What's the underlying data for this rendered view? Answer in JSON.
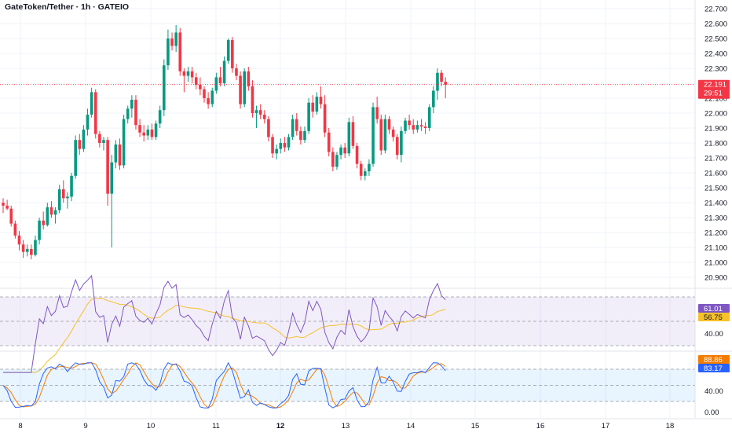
{
  "header": {
    "title": "GateToken/Tether · 1h · GATEIO"
  },
  "price_axis": {
    "labels": [
      "22.700",
      "22.600",
      "22.500",
      "22.400",
      "22.300",
      "22.200",
      "22.100",
      "22.000",
      "21.900",
      "21.800",
      "21.700",
      "21.600",
      "21.500",
      "21.400",
      "21.300",
      "21.200",
      "21.100",
      "21.000",
      "20.900"
    ]
  },
  "last_price": {
    "value": "22.191",
    "countdown": "29:51",
    "color": "#f23645"
  },
  "time_axis": {
    "labels": [
      "8",
      "9",
      "10",
      "11",
      "12",
      "13",
      "14",
      "15",
      "16",
      "17",
      "18"
    ],
    "bold_label": "12"
  },
  "rsi": {
    "value_label": "61.01",
    "ma_label": "56.75",
    "axis_label": "40.00",
    "line_color": "#7e57c2",
    "ma_color": "#f7c12a"
  },
  "stoch": {
    "k_label": "88.86",
    "d_label": "83.17",
    "axis_label_mid": "40.00",
    "axis_label_low": "0.00",
    "k_color": "#2962ff",
    "d_color": "#f57c00"
  },
  "colors": {
    "up": "#089981",
    "down": "#f23645"
  },
  "chart_data": {
    "type": "candlestick",
    "x_unit": "days",
    "ylim": [
      20.85,
      22.75
    ],
    "candles": [
      [
        21.4,
        21.43,
        21.33,
        21.38
      ],
      [
        21.38,
        21.42,
        21.35,
        21.36
      ],
      [
        21.36,
        21.38,
        21.24,
        21.26
      ],
      [
        21.26,
        21.28,
        21.16,
        21.18
      ],
      [
        21.18,
        21.21,
        21.08,
        21.12
      ],
      [
        21.12,
        21.15,
        21.03,
        21.07
      ],
      [
        21.07,
        21.12,
        21.04,
        21.09
      ],
      [
        21.09,
        21.12,
        21.02,
        21.05
      ],
      [
        21.05,
        21.18,
        21.04,
        21.15
      ],
      [
        21.15,
        21.3,
        21.12,
        21.28
      ],
      [
        21.28,
        21.34,
        21.22,
        21.25
      ],
      [
        21.25,
        21.4,
        21.24,
        21.37
      ],
      [
        21.37,
        21.41,
        21.3,
        21.32
      ],
      [
        21.32,
        21.37,
        21.26,
        21.35
      ],
      [
        21.35,
        21.52,
        21.33,
        21.49
      ],
      [
        21.49,
        21.55,
        21.4,
        21.43
      ],
      [
        21.43,
        21.47,
        21.36,
        21.44
      ],
      [
        21.44,
        21.6,
        21.41,
        21.58
      ],
      [
        21.58,
        21.85,
        21.56,
        21.82
      ],
      [
        21.82,
        21.86,
        21.72,
        21.76
      ],
      [
        21.76,
        21.92,
        21.74,
        21.89
      ],
      [
        21.89,
        22.03,
        21.85,
        21.99
      ],
      [
        21.99,
        22.17,
        21.97,
        22.14
      ],
      [
        22.14,
        22.16,
        21.83,
        21.86
      ],
      [
        21.86,
        21.88,
        21.77,
        21.8
      ],
      [
        21.8,
        21.84,
        21.75,
        21.82
      ],
      [
        21.82,
        21.84,
        21.38,
        21.46
      ],
      [
        21.46,
        21.72,
        21.1,
        21.67
      ],
      [
        21.67,
        21.82,
        21.63,
        21.79
      ],
      [
        21.79,
        21.83,
        21.62,
        21.65
      ],
      [
        21.65,
        21.99,
        21.63,
        21.96
      ],
      [
        21.96,
        22.05,
        21.93,
        22.03
      ],
      [
        22.03,
        22.12,
        21.97,
        22.09
      ],
      [
        22.09,
        22.12,
        21.89,
        21.92
      ],
      [
        21.92,
        21.96,
        21.84,
        21.87
      ],
      [
        21.87,
        21.92,
        21.81,
        21.85
      ],
      [
        21.85,
        21.92,
        21.82,
        21.89
      ],
      [
        21.89,
        21.93,
        21.82,
        21.84
      ],
      [
        21.84,
        21.95,
        21.82,
        21.93
      ],
      [
        21.93,
        22.05,
        21.9,
        22.02
      ],
      [
        22.02,
        22.36,
        21.98,
        22.32
      ],
      [
        22.32,
        22.56,
        22.29,
        22.5
      ],
      [
        22.5,
        22.54,
        22.42,
        22.45
      ],
      [
        22.45,
        22.59,
        22.41,
        22.54
      ],
      [
        22.54,
        22.57,
        22.25,
        22.28
      ],
      [
        22.28,
        22.3,
        22.14,
        22.25
      ],
      [
        22.25,
        22.31,
        22.21,
        22.28
      ],
      [
        22.28,
        22.31,
        22.2,
        22.24
      ],
      [
        22.24,
        22.27,
        22.16,
        22.19
      ],
      [
        22.19,
        22.24,
        22.12,
        22.16
      ],
      [
        22.16,
        22.18,
        22.07,
        22.1
      ],
      [
        22.1,
        22.14,
        22.03,
        22.06
      ],
      [
        22.06,
        22.17,
        22.04,
        22.15
      ],
      [
        22.15,
        22.27,
        22.13,
        22.24
      ],
      [
        22.24,
        22.31,
        22.18,
        22.2
      ],
      [
        22.2,
        22.38,
        22.18,
        22.35
      ],
      [
        22.35,
        22.5,
        22.33,
        22.49
      ],
      [
        22.49,
        22.51,
        22.27,
        22.3
      ],
      [
        22.3,
        22.33,
        22.22,
        22.25
      ],
      [
        22.25,
        22.28,
        22.03,
        22.06
      ],
      [
        22.06,
        22.3,
        22.04,
        22.28
      ],
      [
        22.28,
        22.31,
        22.15,
        22.18
      ],
      [
        22.18,
        22.22,
        21.97,
        22.0
      ],
      [
        22.0,
        22.05,
        21.9,
        22.02
      ],
      [
        22.02,
        22.06,
        21.96,
        21.99
      ],
      [
        21.99,
        22.02,
        21.93,
        21.96
      ],
      [
        21.96,
        21.98,
        21.81,
        21.84
      ],
      [
        21.84,
        21.86,
        21.7,
        21.73
      ],
      [
        21.73,
        21.79,
        21.69,
        21.76
      ],
      [
        21.76,
        21.83,
        21.73,
        21.8
      ],
      [
        21.8,
        21.84,
        21.74,
        21.77
      ],
      [
        21.77,
        21.86,
        21.75,
        21.84
      ],
      [
        21.84,
        21.99,
        21.82,
        21.96
      ],
      [
        21.96,
        22.0,
        21.85,
        21.88
      ],
      [
        21.88,
        21.91,
        21.79,
        21.82
      ],
      [
        21.82,
        21.91,
        21.8,
        21.88
      ],
      [
        21.88,
        22.1,
        21.86,
        22.07
      ],
      [
        22.07,
        22.12,
        21.97,
        22.01
      ],
      [
        22.01,
        22.14,
        21.99,
        22.11
      ],
      [
        22.11,
        22.18,
        22.03,
        22.06
      ],
      [
        22.06,
        22.12,
        21.84,
        21.87
      ],
      [
        21.87,
        21.9,
        21.71,
        21.74
      ],
      [
        21.74,
        21.77,
        21.61,
        21.64
      ],
      [
        21.64,
        21.74,
        21.62,
        21.72
      ],
      [
        21.72,
        21.79,
        21.69,
        21.77
      ],
      [
        21.77,
        21.8,
        21.7,
        21.73
      ],
      [
        21.73,
        21.97,
        21.71,
        21.94
      ],
      [
        21.94,
        21.98,
        21.76,
        21.78
      ],
      [
        21.78,
        21.8,
        21.63,
        21.66
      ],
      [
        21.66,
        21.68,
        21.55,
        21.58
      ],
      [
        21.58,
        21.63,
        21.55,
        21.61
      ],
      [
        21.61,
        21.69,
        21.58,
        21.66
      ],
      [
        21.66,
        22.07,
        21.64,
        22.04
      ],
      [
        22.04,
        22.11,
        21.93,
        21.96
      ],
      [
        21.96,
        21.99,
        21.72,
        21.75
      ],
      [
        21.75,
        21.99,
        21.73,
        21.96
      ],
      [
        21.96,
        21.98,
        21.86,
        21.89
      ],
      [
        21.89,
        21.91,
        21.81,
        21.84
      ],
      [
        21.84,
        21.86,
        21.69,
        21.72
      ],
      [
        21.72,
        21.91,
        21.67,
        21.88
      ],
      [
        21.88,
        21.97,
        21.86,
        21.95
      ],
      [
        21.95,
        21.99,
        21.89,
        21.92
      ],
      [
        21.92,
        21.96,
        21.86,
        21.89
      ],
      [
        21.89,
        21.95,
        21.87,
        21.92
      ],
      [
        21.92,
        21.96,
        21.88,
        21.91
      ],
      [
        21.91,
        21.94,
        21.86,
        21.9
      ],
      [
        21.9,
        22.06,
        21.88,
        22.04
      ],
      [
        22.04,
        22.18,
        22.0,
        22.15
      ],
      [
        22.15,
        22.3,
        22.09,
        22.27
      ],
      [
        22.27,
        22.29,
        22.18,
        22.21
      ],
      [
        22.21,
        22.24,
        22.1,
        22.19
      ]
    ]
  }
}
